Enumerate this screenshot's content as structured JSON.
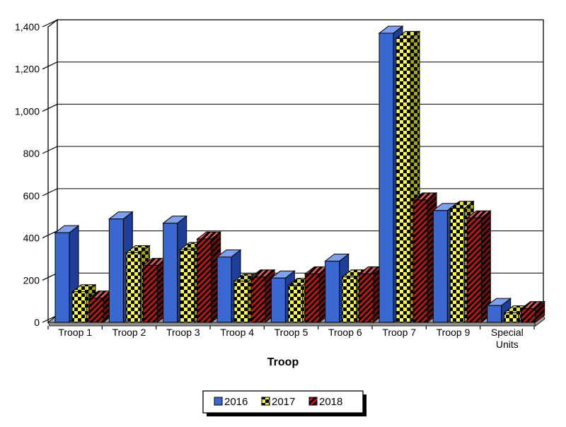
{
  "chart_data": {
    "type": "bar",
    "style": "3d-clustered-column",
    "title": "",
    "xlabel": "Troop",
    "ylabel": "",
    "ylim": [
      0,
      1400
    ],
    "ytick_step": 200,
    "ytick_values": [
      0,
      200,
      400,
      600,
      800,
      1000,
      1200,
      1400
    ],
    "ytick_labels": [
      "0",
      "200",
      "400",
      "600",
      "800",
      "1,000",
      "1,200",
      "1,400"
    ],
    "grid": true,
    "legend_position": "bottom",
    "categories": [
      "Troop 1",
      "Troop 2",
      "Troop 3",
      "Troop 4",
      "Troop 5",
      "Troop 6",
      "Troop 7",
      "Troop 9",
      "Special Units"
    ],
    "categories_display": [
      [
        "Troop 1"
      ],
      [
        "Troop 2"
      ],
      [
        "Troop 3"
      ],
      [
        "Troop 4"
      ],
      [
        "Troop 5"
      ],
      [
        "Troop 6"
      ],
      [
        "Troop 7"
      ],
      [
        "Troop 9"
      ],
      [
        "Special",
        "Units"
      ]
    ],
    "series": [
      {
        "name": "2016",
        "pattern": "solid",
        "color": "#3A67D2",
        "values": [
          425,
          490,
          470,
          310,
          210,
          290,
          1370,
          530,
          80
        ]
      },
      {
        "name": "2017",
        "pattern": "checker-black-on-yellow",
        "color": "#FFFF33",
        "values": [
          145,
          330,
          345,
          195,
          175,
          215,
          1345,
          540,
          45
        ]
      },
      {
        "name": "2018",
        "pattern": "diagonal-stripes-black-on-red",
        "color": "#E01111",
        "values": [
          115,
          270,
          395,
          215,
          230,
          230,
          580,
          495,
          65
        ]
      }
    ],
    "floor_color": "#A9A9A9",
    "wall_color": "#FFFFFF",
    "gridline_color": "#000000"
  }
}
